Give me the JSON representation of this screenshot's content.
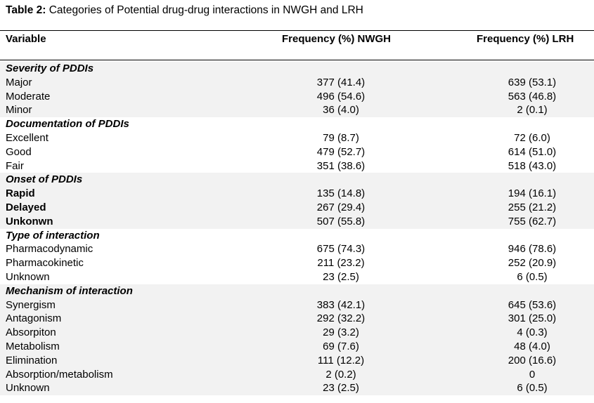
{
  "caption": {
    "lead": "Table 2:",
    "text": " Categories of Potential drug-drug interactions in NWGH and LRH"
  },
  "header": {
    "variable": "Variable",
    "nwgh": "Frequency (%) NWGH",
    "lrh": "Frequency (%) LRH"
  },
  "rows": [
    {
      "type": "section",
      "label": "Severity of PDDIs",
      "nwgh": "",
      "lrh": "",
      "shade": true
    },
    {
      "type": "item",
      "label": "Major",
      "nwgh": "377 (41.4)",
      "lrh": "639 (53.1)",
      "shade": true
    },
    {
      "type": "item",
      "label": "Moderate",
      "nwgh": "496 (54.6)",
      "lrh": "563 (46.8)",
      "shade": true
    },
    {
      "type": "item",
      "label": "Minor",
      "nwgh": "36 (4.0)",
      "lrh": "2 (0.1)",
      "shade": true
    },
    {
      "type": "section",
      "label": "Documentation of PDDIs",
      "nwgh": "",
      "lrh": "",
      "shade": false
    },
    {
      "type": "item",
      "label": "Excellent",
      "nwgh": "79 (8.7)",
      "lrh": "72 (6.0)",
      "shade": false
    },
    {
      "type": "item",
      "label": "Good",
      "nwgh": "479 (52.7)",
      "lrh": "614 (51.0)",
      "shade": false
    },
    {
      "type": "item",
      "label": "Fair",
      "nwgh": "351 (38.6)",
      "lrh": "518 (43.0)",
      "shade": false
    },
    {
      "type": "section",
      "label": "Onset of PDDIs",
      "nwgh": "",
      "lrh": "",
      "shade": true
    },
    {
      "type": "strong",
      "label": "Rapid",
      "nwgh": "135 (14.8)",
      "lrh": "194 (16.1)",
      "shade": true
    },
    {
      "type": "strong",
      "label": "Delayed",
      "nwgh": "267 (29.4)",
      "lrh": "255 (21.2)",
      "shade": true
    },
    {
      "type": "strong",
      "label": "Unkonwn",
      "nwgh": "507 (55.8)",
      "lrh": "755 (62.7)",
      "shade": true
    },
    {
      "type": "section",
      "label": "Type of interaction",
      "nwgh": "",
      "lrh": "",
      "shade": false
    },
    {
      "type": "item",
      "label": "Pharmacodynamic",
      "nwgh": "675 (74.3)",
      "lrh": "946 (78.6)",
      "shade": false
    },
    {
      "type": "item",
      "label": "Pharmacokinetic",
      "nwgh": "211 (23.2)",
      "lrh": "252 (20.9)",
      "shade": false
    },
    {
      "type": "item",
      "label": "Unknown",
      "nwgh": "23 (2.5)",
      "lrh": "6 (0.5)",
      "shade": false
    },
    {
      "type": "section",
      "label": "Mechanism of interaction",
      "nwgh": "",
      "lrh": "",
      "shade": true
    },
    {
      "type": "item",
      "label": "Synergism",
      "nwgh": "383 (42.1)",
      "lrh": "645 (53.6)",
      "shade": true
    },
    {
      "type": "item",
      "label": "Antagonism",
      "nwgh": "292 (32.2)",
      "lrh": "301 (25.0)",
      "shade": true
    },
    {
      "type": "item",
      "label": "Absorpiton",
      "nwgh": "29 (3.2)",
      "lrh": "4 (0.3)",
      "shade": true
    },
    {
      "type": "item",
      "label": "Metabolism",
      "nwgh": "69 (7.6)",
      "lrh": "48 (4.0)",
      "shade": true
    },
    {
      "type": "item",
      "label": "Elimination",
      "nwgh": "111 (12.2)",
      "lrh": "200 (16.6)",
      "shade": true
    },
    {
      "type": "item",
      "label": "Absorption/metabolism",
      "nwgh": "2 (0.2)",
      "lrh": "0",
      "shade": true
    },
    {
      "type": "item",
      "label": "Unknown",
      "nwgh": "23 (2.5)",
      "lrh": "6 (0.5)",
      "shade": true
    }
  ]
}
